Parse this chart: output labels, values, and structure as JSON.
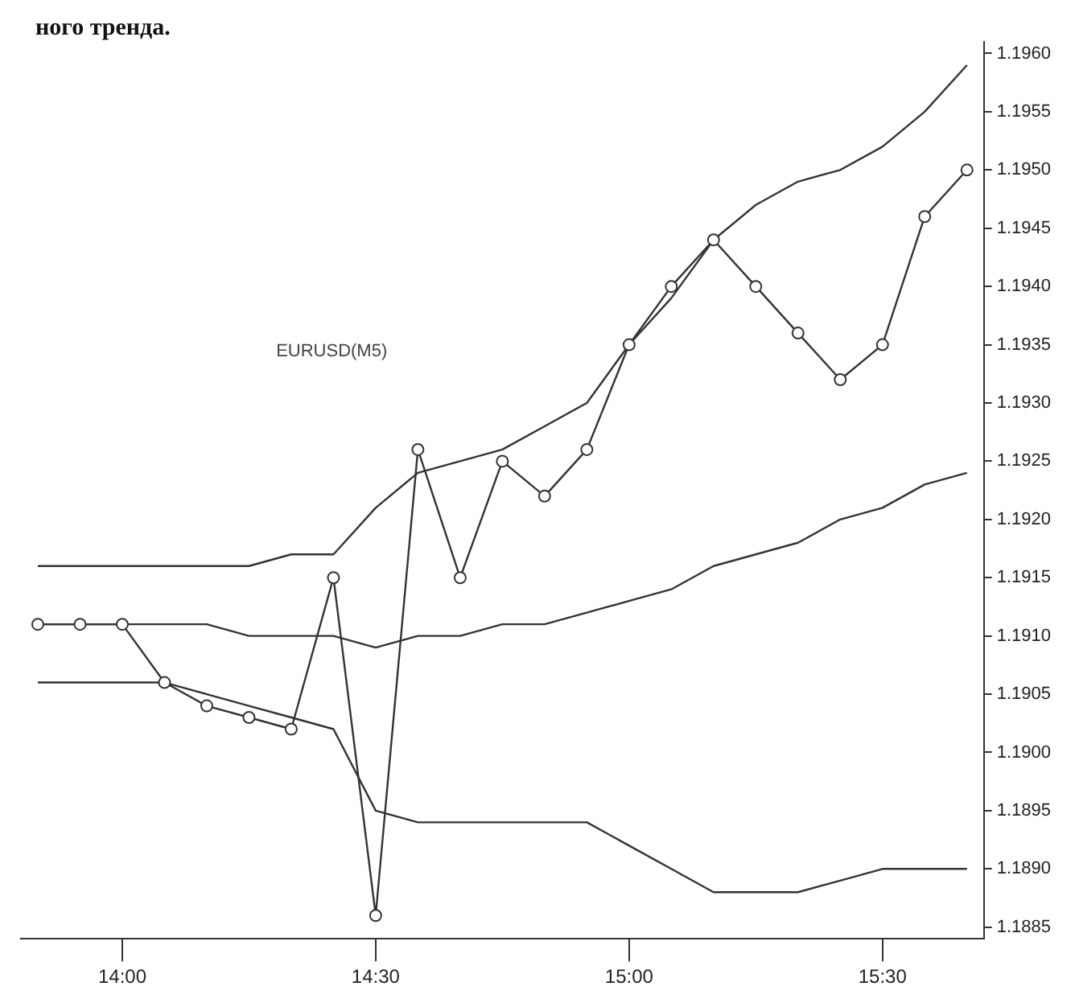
{
  "chart_data": {
    "type": "line",
    "annotations": [
      "ного тренда.",
      "EURUSD(M5)"
    ],
    "x": [
      13.8333,
      13.9167,
      14.0,
      14.0833,
      14.1667,
      14.25,
      14.3333,
      14.4167,
      14.5,
      14.5833,
      14.6667,
      14.75,
      14.8333,
      14.9167,
      15.0,
      15.0833,
      15.1667,
      15.25,
      15.3333,
      15.4167,
      15.5,
      15.5833,
      15.6667
    ],
    "series": [
      {
        "color": "#333333",
        "marker": "circle",
        "values": [
          1.1911,
          1.1911,
          1.1911,
          1.1906,
          1.1904,
          1.1903,
          1.1902,
          1.1915,
          1.1886,
          1.1926,
          1.1915,
          1.1925,
          1.1922,
          1.1926,
          1.1935,
          1.194,
          1.1944,
          1.194,
          1.1936,
          1.1932,
          1.1935,
          1.1946,
          1.195
        ]
      },
      {
        "color": "#333333",
        "marker": "none",
        "values": [
          1.1916,
          1.1916,
          1.1916,
          1.1916,
          1.1916,
          1.1916,
          1.1917,
          1.1917,
          1.1921,
          1.1924,
          1.1925,
          1.1926,
          1.1928,
          1.193,
          1.1935,
          1.1939,
          1.1944,
          1.1947,
          1.1949,
          1.195,
          1.1952,
          1.1955,
          1.1959
        ]
      },
      {
        "color": "#333333",
        "marker": "none",
        "values": [
          1.1911,
          1.1911,
          1.1911,
          1.1911,
          1.1911,
          1.191,
          1.191,
          1.191,
          1.1909,
          1.191,
          1.191,
          1.1911,
          1.1911,
          1.1912,
          1.1913,
          1.1914,
          1.1916,
          1.1917,
          1.1918,
          1.192,
          1.1921,
          1.1923,
          1.1924
        ]
      },
      {
        "color": "#333333",
        "marker": "none",
        "values": [
          1.1906,
          1.1906,
          1.1906,
          1.1906,
          1.1905,
          1.1904,
          1.1903,
          1.1902,
          1.1895,
          1.1894,
          1.1894,
          1.1894,
          1.1894,
          1.1894,
          1.1892,
          1.189,
          1.1888,
          1.1888,
          1.1888,
          1.1889,
          1.189,
          1.189,
          1.189
        ]
      }
    ],
    "xlim": [
      13.8,
      15.7
    ],
    "xticks": [
      {
        "value": 14,
        "label": "14:00"
      },
      {
        "value": 14.5,
        "label": "14:30"
      },
      {
        "value": 15,
        "label": "15:00"
      },
      {
        "value": 15.5,
        "label": "15:30"
      }
    ],
    "ylim": [
      1.1884,
      1.1961
    ],
    "yticks": [
      1.1885,
      {
        "value": 1.189,
        "label": "1.1890"
      },
      1.1895,
      {
        "value": 1.19,
        "label": "1.1900"
      },
      1.1905,
      {
        "value": 1.191,
        "label": "1.1910"
      },
      1.1915,
      {
        "value": 1.192,
        "label": "1.1920"
      },
      1.1925,
      {
        "value": 1.193,
        "label": "1.1930"
      },
      1.1935,
      {
        "value": 1.194,
        "label": "1.1940"
      },
      1.1945,
      {
        "value": 1.195,
        "label": "1.1950"
      },
      1.1955,
      {
        "value": 1.196,
        "label": "1.1960"
      }
    ],
    "grid": false,
    "legend": false
  }
}
